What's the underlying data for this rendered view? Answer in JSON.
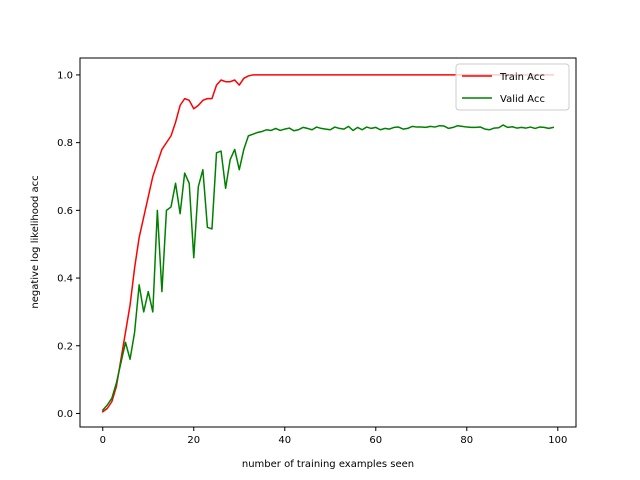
{
  "chart_data": {
    "type": "line",
    "title": "",
    "xlabel": "number of training examples seen",
    "ylabel": "negative log likelihood acc",
    "xlim": [
      -5,
      104
    ],
    "ylim": [
      -0.04,
      1.05
    ],
    "xticks": [
      0,
      20,
      40,
      60,
      80,
      100
    ],
    "yticks": [
      0.0,
      0.2,
      0.4,
      0.6,
      0.8,
      1.0
    ],
    "xtick_labels": [
      "0",
      "20",
      "40",
      "60",
      "80",
      "100"
    ],
    "ytick_labels": [
      "0.0",
      "0.2",
      "0.4",
      "0.6",
      "0.8",
      "1.0"
    ],
    "grid": false,
    "legend_position": "top-right",
    "series": [
      {
        "name": "Train Acc",
        "color": "#ff0000",
        "x": [
          0,
          1,
          2,
          3,
          4,
          5,
          6,
          7,
          8,
          9,
          10,
          11,
          12,
          13,
          14,
          15,
          16,
          17,
          18,
          19,
          20,
          21,
          22,
          23,
          24,
          25,
          26,
          27,
          28,
          29,
          30,
          31,
          32,
          33,
          34,
          35,
          36,
          37,
          38,
          39,
          40,
          41,
          42,
          43,
          44,
          45,
          46,
          47,
          48,
          49,
          50,
          51,
          52,
          53,
          54,
          55,
          56,
          57,
          58,
          59,
          60,
          61,
          62,
          63,
          64,
          65,
          66,
          67,
          68,
          69,
          70,
          71,
          72,
          73,
          74,
          75,
          76,
          77,
          78,
          79,
          80,
          81,
          82,
          83,
          84,
          85,
          86,
          87,
          88,
          89,
          90,
          91,
          92,
          93,
          94,
          95,
          96,
          97,
          98,
          99
        ],
        "y": [
          0.005,
          0.015,
          0.035,
          0.08,
          0.16,
          0.24,
          0.32,
          0.43,
          0.52,
          0.58,
          0.64,
          0.7,
          0.74,
          0.78,
          0.8,
          0.82,
          0.86,
          0.91,
          0.93,
          0.925,
          0.9,
          0.91,
          0.925,
          0.93,
          0.93,
          0.97,
          0.985,
          0.98,
          0.98,
          0.985,
          0.97,
          0.99,
          0.997,
          1.0,
          1.0,
          1.0,
          1.0,
          1.0,
          1.0,
          1.0,
          1.0,
          1.0,
          1.0,
          1.0,
          1.0,
          1.0,
          1.0,
          1.0,
          1.0,
          1.0,
          1.0,
          1.0,
          1.0,
          1.0,
          1.0,
          1.0,
          1.0,
          1.0,
          1.0,
          1.0,
          1.0,
          1.0,
          1.0,
          1.0,
          1.0,
          1.0,
          1.0,
          1.0,
          1.0,
          1.0,
          1.0,
          1.0,
          1.0,
          1.0,
          1.0,
          1.0,
          1.0,
          1.0,
          1.0,
          1.0,
          1.0,
          1.0,
          1.0,
          1.0,
          1.0,
          1.0,
          1.0,
          1.0,
          1.0,
          1.0,
          1.0,
          1.0,
          1.0,
          1.0,
          1.0,
          1.0,
          1.0,
          1.0,
          1.0,
          1.0
        ]
      },
      {
        "name": "Valid Acc",
        "color": "#008000",
        "x": [
          0,
          1,
          2,
          3,
          4,
          5,
          6,
          7,
          8,
          9,
          10,
          11,
          12,
          13,
          14,
          15,
          16,
          17,
          18,
          19,
          20,
          21,
          22,
          23,
          24,
          25,
          26,
          27,
          28,
          29,
          30,
          31,
          32,
          33,
          34,
          35,
          36,
          37,
          38,
          39,
          40,
          41,
          42,
          43,
          44,
          45,
          46,
          47,
          48,
          49,
          50,
          51,
          52,
          53,
          54,
          55,
          56,
          57,
          58,
          59,
          60,
          61,
          62,
          63,
          64,
          65,
          66,
          67,
          68,
          69,
          70,
          71,
          72,
          73,
          74,
          75,
          76,
          77,
          78,
          79,
          80,
          81,
          82,
          83,
          84,
          85,
          86,
          87,
          88,
          89,
          90,
          91,
          92,
          93,
          94,
          95,
          96,
          97,
          98,
          99
        ],
        "y": [
          0.01,
          0.025,
          0.045,
          0.09,
          0.15,
          0.21,
          0.16,
          0.24,
          0.38,
          0.3,
          0.36,
          0.3,
          0.6,
          0.36,
          0.6,
          0.61,
          0.68,
          0.59,
          0.71,
          0.68,
          0.46,
          0.67,
          0.72,
          0.55,
          0.545,
          0.77,
          0.775,
          0.665,
          0.75,
          0.78,
          0.72,
          0.78,
          0.82,
          0.825,
          0.83,
          0.833,
          0.838,
          0.836,
          0.842,
          0.836,
          0.84,
          0.843,
          0.835,
          0.838,
          0.845,
          0.842,
          0.838,
          0.846,
          0.842,
          0.84,
          0.838,
          0.846,
          0.842,
          0.84,
          0.848,
          0.836,
          0.845,
          0.838,
          0.846,
          0.842,
          0.845,
          0.838,
          0.842,
          0.84,
          0.845,
          0.846,
          0.84,
          0.842,
          0.848,
          0.846,
          0.846,
          0.845,
          0.848,
          0.846,
          0.85,
          0.849,
          0.842,
          0.845,
          0.85,
          0.848,
          0.846,
          0.845,
          0.845,
          0.846,
          0.84,
          0.838,
          0.843,
          0.844,
          0.852,
          0.845,
          0.847,
          0.843,
          0.845,
          0.843,
          0.846,
          0.842,
          0.846,
          0.845,
          0.842,
          0.845
        ]
      }
    ]
  }
}
